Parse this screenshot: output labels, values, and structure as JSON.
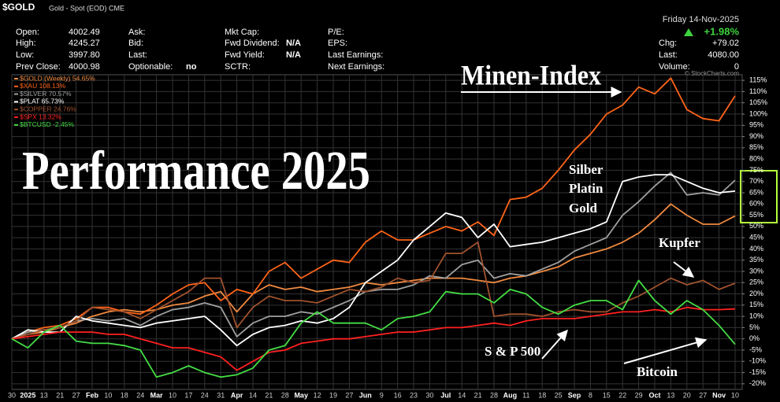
{
  "header": {
    "symbol": "$GOLD",
    "description": "Gold - Spot (EOD) CME",
    "date": "Friday 14-Nov-2025",
    "change_pct": "+1.98%",
    "credit": "© StockCharts.com"
  },
  "quote": {
    "columns": [
      [
        {
          "label": "Open:",
          "value": "4002.49"
        },
        {
          "label": "High:",
          "value": "4245.27"
        },
        {
          "label": "Low:",
          "value": "3997.80"
        },
        {
          "label": "Prev Close:",
          "value": "4000.98"
        }
      ],
      [
        {
          "label": "Ask:"
        },
        {
          "label": "Bid:"
        },
        {
          "label": "Last:"
        },
        {
          "label": "Optionable:",
          "value": "no"
        }
      ],
      [
        {
          "label": "Mkt Cap:"
        },
        {
          "label": "Fwd Dividend:",
          "value": "N/A"
        },
        {
          "label": "Fwd Yield:",
          "value": "N/A"
        },
        {
          "label": "SCTR:"
        }
      ],
      [
        {
          "label": "P/E:"
        },
        {
          "label": "EPS:"
        },
        {
          "label": "Last Earnings:"
        },
        {
          "label": "Next Earnings:"
        }
      ]
    ],
    "right": [
      {
        "label": "Chg:",
        "value": "+79.02"
      },
      {
        "label": "Last:",
        "value": "4080.00"
      },
      {
        "label": "Volume:",
        "value": "0"
      }
    ]
  },
  "chart_data": {
    "type": "line",
    "title": "Performance 2025",
    "annotations": [
      "Minen-Index",
      "Silber",
      "Platin",
      "Gold",
      "Kupfer",
      "S & P 500",
      "Bitcoin"
    ],
    "categories": [
      "30",
      "2025",
      "13",
      "21",
      "27",
      "Feb",
      "10",
      "18",
      "24",
      "Mar",
      "10",
      "17",
      "24",
      "31",
      "Apr",
      "14",
      "21",
      "28",
      "May",
      "12",
      "19",
      "27",
      "Jun",
      "9",
      "16",
      "23",
      "30",
      "Jul",
      "14",
      "21",
      "28",
      "Aug",
      "11",
      "18",
      "25",
      "Sep",
      "8",
      "15",
      "22",
      "29",
      "Oct",
      "13",
      "20",
      "27",
      "Nov",
      "10"
    ],
    "ylim": [
      -22.5,
      117.5
    ],
    "yticks": [
      {
        "value": -20,
        "label": "-20%"
      },
      {
        "value": -15,
        "label": "-15%"
      },
      {
        "value": -10,
        "label": "-10%"
      },
      {
        "value": -5,
        "label": "-5%"
      },
      {
        "value": 0,
        "label": "0%"
      },
      {
        "value": 5,
        "label": "5%"
      },
      {
        "value": 10,
        "label": "10%"
      },
      {
        "value": 15,
        "label": "15%"
      },
      {
        "value": 20,
        "label": "20%"
      },
      {
        "value": 25,
        "label": "25%"
      },
      {
        "value": 30,
        "label": "30%"
      },
      {
        "value": 35,
        "label": "35%"
      },
      {
        "value": 40,
        "label": "40%"
      },
      {
        "value": 45,
        "label": "45%"
      },
      {
        "value": 50,
        "label": "50%"
      },
      {
        "value": 55,
        "label": "55%"
      },
      {
        "value": 60,
        "label": "60%"
      },
      {
        "value": 65,
        "label": "65%"
      },
      {
        "value": 70,
        "label": "70%"
      },
      {
        "value": 75,
        "label": "75%"
      },
      {
        "value": 80,
        "label": "80%"
      },
      {
        "value": 85,
        "label": "85%"
      },
      {
        "value": 90,
        "label": "90%"
      },
      {
        "value": 95,
        "label": "95%"
      },
      {
        "value": 100,
        "label": "100%"
      },
      {
        "value": 105,
        "label": "105%"
      },
      {
        "value": 110,
        "label": "110%"
      },
      {
        "value": 115,
        "label": "115%"
      }
    ],
    "grid": true,
    "legend": "upper left",
    "series": [
      {
        "name": "$GOLD (Weekly) 54.65%",
        "color": "#f08a40",
        "values": [
          0,
          2,
          3,
          5,
          7,
          10,
          12,
          13,
          12,
          13,
          15,
          16,
          19,
          21,
          12,
          20,
          24,
          22,
          23,
          21,
          22,
          23,
          25,
          24,
          25,
          26,
          27,
          27,
          27,
          26,
          25,
          27,
          28,
          30,
          32,
          36,
          38,
          40,
          43,
          47,
          53,
          60,
          55,
          51,
          51,
          54.65
        ]
      },
      {
        "name": "$XAU 108.13%",
        "color": "#ff6418",
        "values": [
          0,
          3,
          5,
          6,
          9,
          14,
          14,
          12,
          11,
          15,
          20,
          24,
          25,
          17,
          22,
          20,
          30,
          34,
          27,
          31,
          35,
          34,
          43,
          48,
          44,
          44,
          47,
          50,
          48,
          52,
          46,
          62,
          63,
          67,
          75,
          84,
          91,
          100,
          104,
          112,
          109,
          116,
          102,
          98,
          97,
          108.13
        ]
      },
      {
        "name": "$SILVER 70.57%",
        "color": "#a0a0a0",
        "values": [
          0,
          3,
          4,
          5,
          8,
          9,
          8,
          9,
          6,
          10,
          13,
          14,
          16,
          14,
          1,
          7,
          10,
          10,
          12,
          11,
          14,
          17,
          21,
          22,
          22,
          24,
          28,
          27,
          33,
          35,
          27,
          29,
          28,
          31,
          34,
          39,
          42,
          45,
          55,
          61,
          68,
          74,
          64,
          65,
          64,
          70.57
        ]
      },
      {
        "name": "$PLAT 65.73%",
        "color": "#ffffff",
        "values": [
          0,
          4,
          3,
          3,
          10,
          8,
          7,
          6,
          5,
          7,
          8,
          9,
          10,
          4,
          -3,
          2,
          5,
          6,
          8,
          7,
          9,
          14,
          25,
          30,
          35,
          44,
          50,
          56,
          54,
          45,
          51,
          41,
          42,
          43,
          45,
          47,
          49,
          52,
          70,
          72,
          73,
          73,
          70,
          67,
          65,
          65.73
        ]
      },
      {
        "name": "$COPPER 24.76%",
        "color": "#a0522d",
        "values": [
          0,
          2,
          4,
          5,
          8,
          14,
          13,
          12,
          9,
          13,
          17,
          21,
          27,
          27,
          5,
          14,
          19,
          17,
          17,
          16,
          19,
          22,
          21,
          23,
          27,
          25,
          26,
          38,
          38,
          43,
          10,
          11,
          11,
          10,
          12,
          13,
          12,
          12,
          16,
          19,
          23,
          27,
          24,
          26,
          22,
          24.76
        ]
      },
      {
        "name": "$SPX 13.32%",
        "color": "#ff2020",
        "values": [
          0,
          1,
          2,
          3,
          3,
          3,
          2,
          2,
          0,
          -2,
          -4,
          -4,
          -6,
          -8,
          -14,
          -10,
          -6,
          -5,
          -2,
          -1,
          0,
          0,
          1,
          2,
          3,
          3,
          4,
          5,
          5,
          6,
          7,
          6,
          8,
          9,
          9,
          9,
          10,
          11,
          12,
          12,
          13,
          12,
          14,
          13,
          13,
          13.32
        ]
      },
      {
        "name": "$BTCUSD -2.45%",
        "color": "#44dd44",
        "values": [
          0,
          -4,
          3,
          6,
          -1,
          -2,
          -2,
          -3,
          -5,
          -17,
          -15,
          -12,
          -15,
          -17,
          -16,
          -13,
          -5,
          -3,
          7,
          12,
          7,
          7,
          7,
          4,
          9,
          10,
          12,
          21,
          20,
          20,
          16,
          22,
          20,
          14,
          11,
          15,
          17,
          17,
          13,
          26,
          17,
          11,
          17,
          13,
          6,
          -2.45
        ]
      }
    ]
  }
}
